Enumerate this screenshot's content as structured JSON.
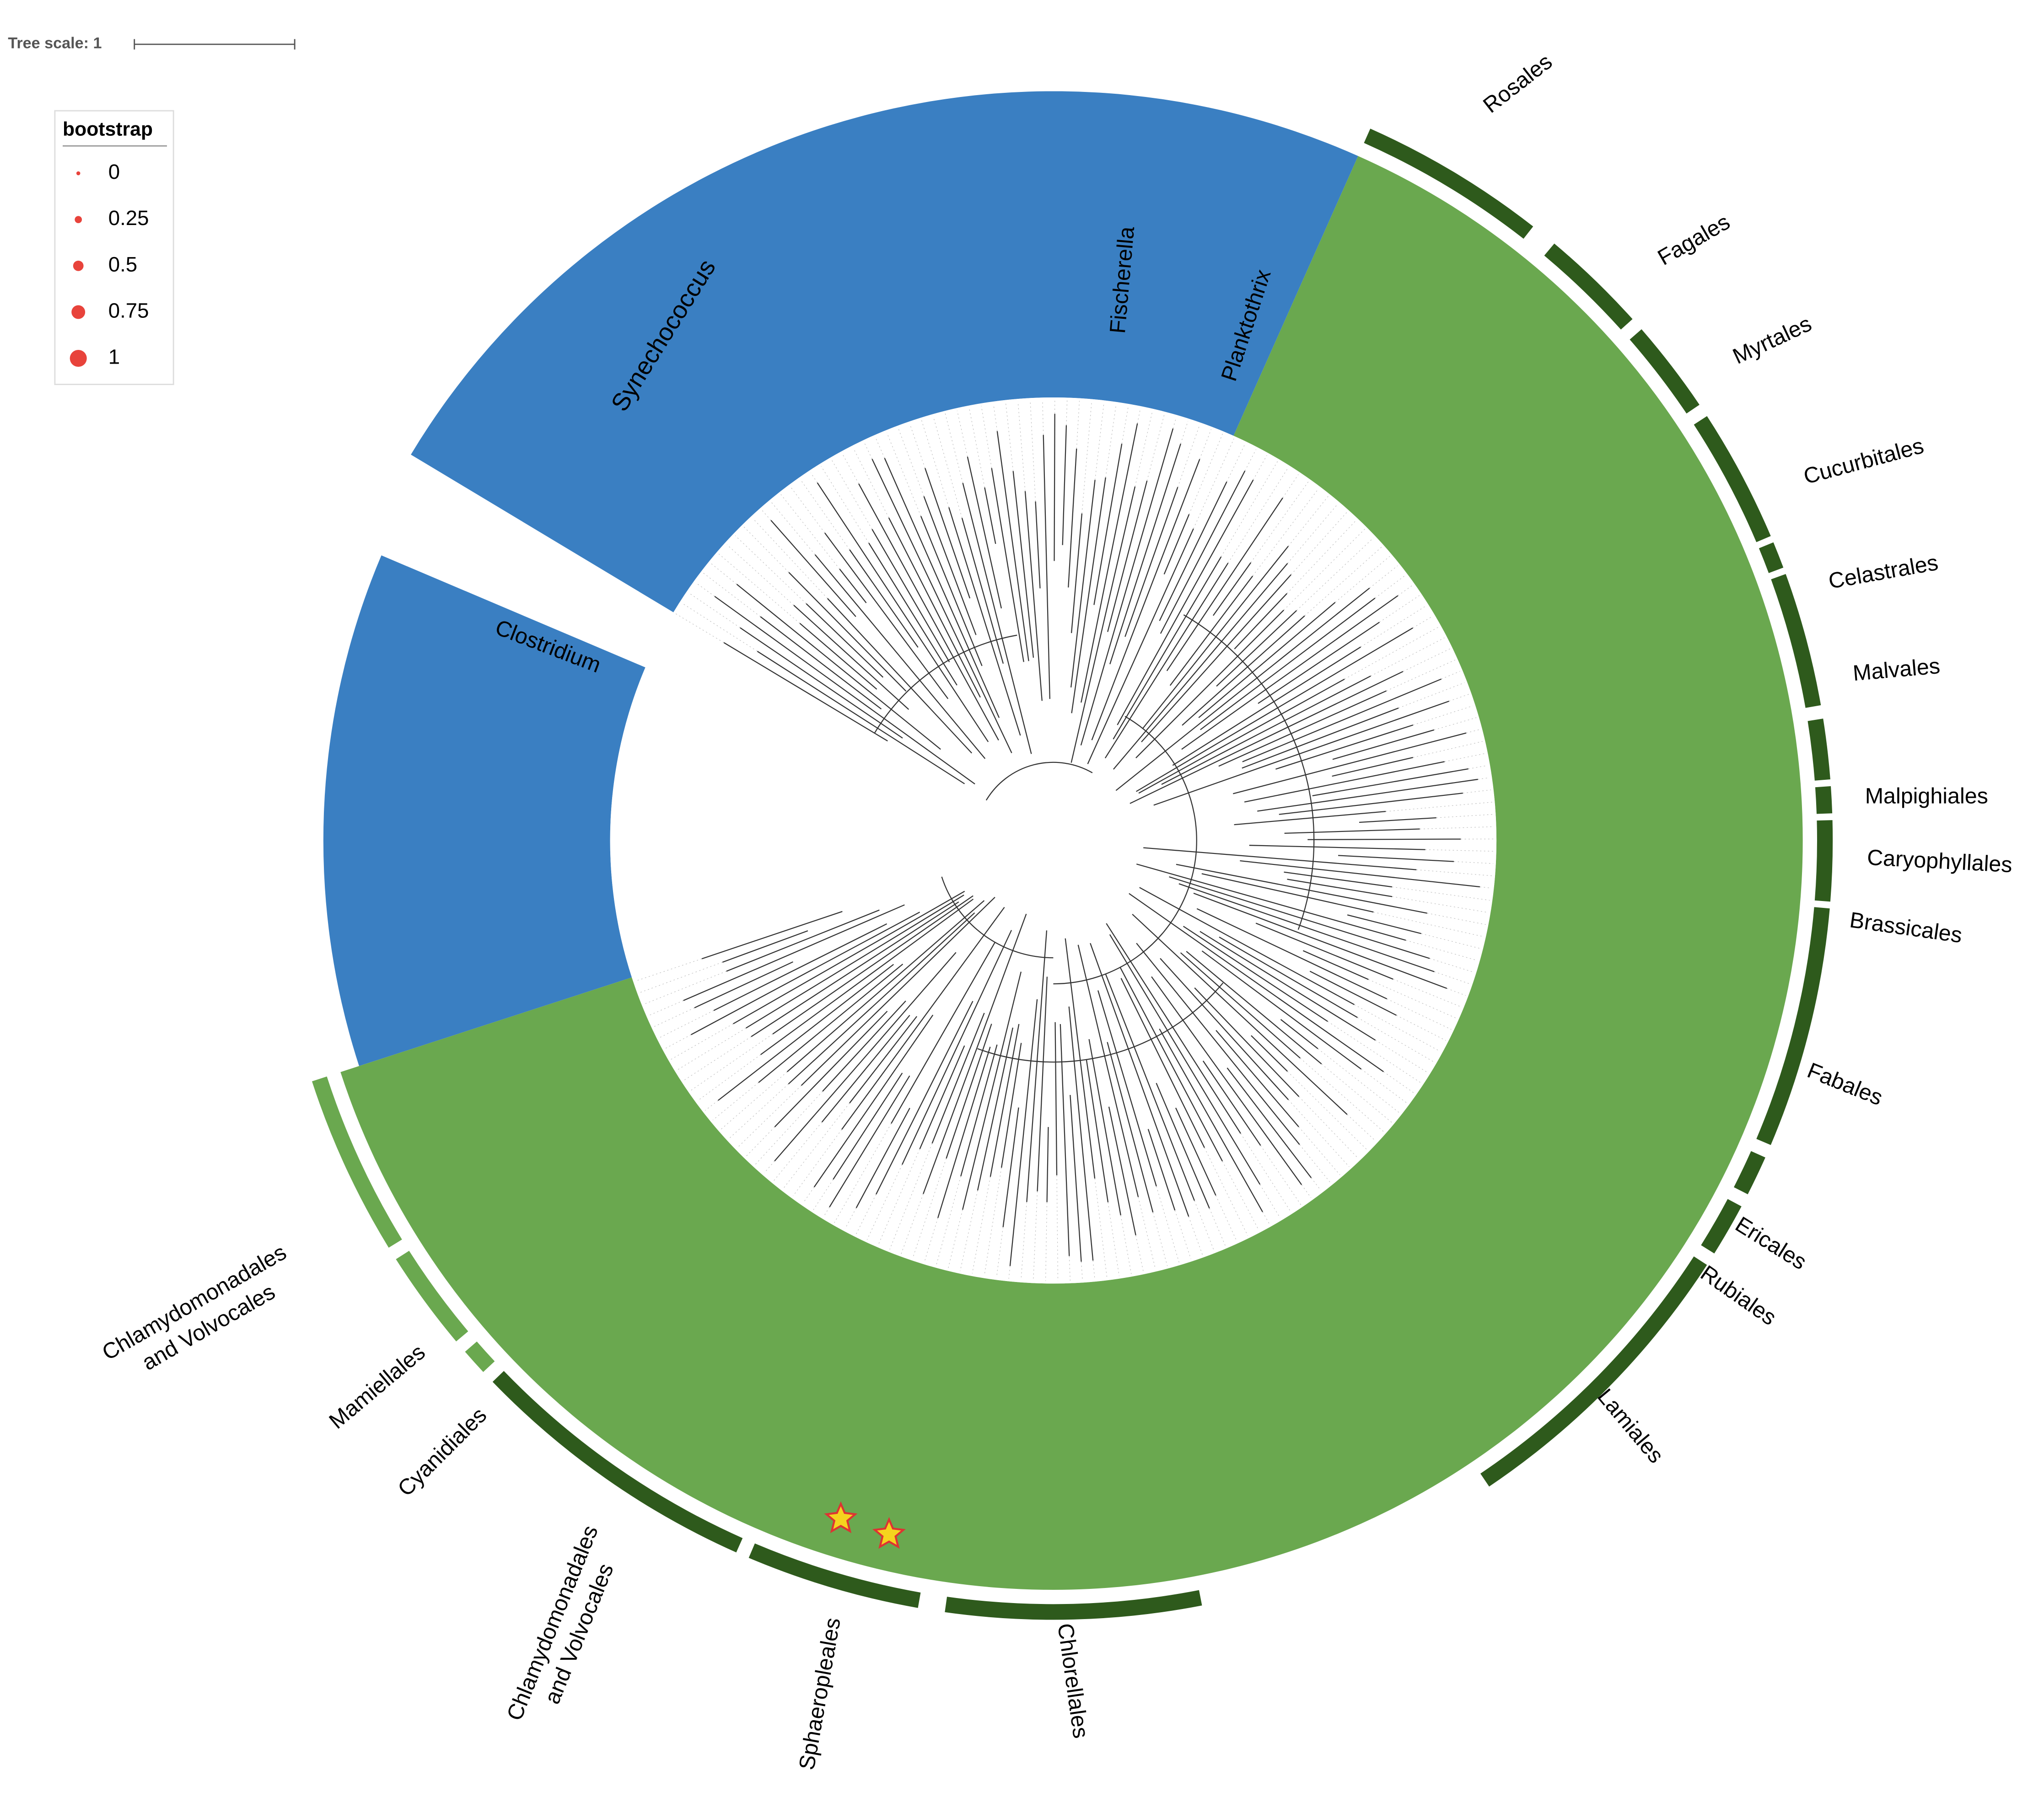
{
  "tree_scale": "Tree scale: 1",
  "legend": {
    "title": "bootstrap",
    "items": [
      0,
      0.25,
      0.5,
      0.75,
      1
    ]
  },
  "clades": [
    "Synechococcus",
    "Fischerella",
    "Planktothrix",
    "Clostridium"
  ],
  "orders": [
    {
      "lines": [
        "Rosales"
      ]
    },
    {
      "lines": [
        "Fagales"
      ]
    },
    {
      "lines": [
        "Myrtales"
      ]
    },
    {
      "lines": [
        "Cucurbitales"
      ]
    },
    {
      "lines": [
        "Celastrales"
      ]
    },
    {
      "lines": [
        "Malvales"
      ]
    },
    {
      "lines": [
        "Malpighiales"
      ]
    },
    {
      "lines": [
        "Caryophyllales"
      ]
    },
    {
      "lines": [
        "Brassicales"
      ]
    },
    {
      "lines": [
        "Fabales"
      ]
    },
    {
      "lines": [
        "Ericales"
      ]
    },
    {
      "lines": [
        "Rubiales"
      ]
    },
    {
      "lines": [
        "Lamiales"
      ]
    },
    {
      "lines": [
        "Chlorellales"
      ]
    },
    {
      "lines": [
        "Sphaeropleales"
      ]
    },
    {
      "lines": [
        "Chlamydomonadales",
        "and Volvocales"
      ]
    },
    {
      "lines": [
        "Cyanidiales"
      ]
    },
    {
      "lines": [
        "Mamiellales"
      ]
    },
    {
      "lines": [
        "Chlamydomonadales",
        "and Volvocales"
      ]
    }
  ]
}
